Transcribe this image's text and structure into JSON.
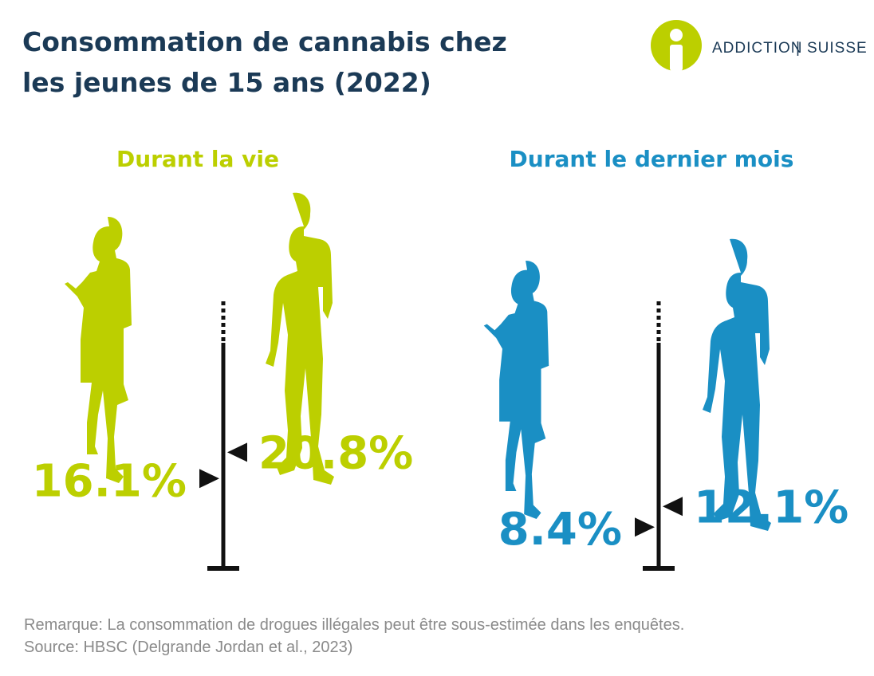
{
  "header": {
    "title_lines": [
      "Consommation de cannabis chez",
      "les jeunes de 15 ans (2022)"
    ],
    "logo_left": "ADDICTION",
    "logo_sep": "|",
    "logo_right": "SUISSE"
  },
  "panels": [
    {
      "title": "Durant la vie",
      "color": "#bccf00",
      "values": [
        16.1,
        20.8
      ],
      "value_labels": [
        "16.1%",
        "20.8%"
      ]
    },
    {
      "title": "Durant le dernier mois",
      "color": "#1a8fc4",
      "values": [
        8.4,
        12.1
      ],
      "value_labels": [
        "8.4%",
        "12.1%"
      ]
    }
  ],
  "notes": [
    "Remarque: La consommation de drogues illégales peut être sous-estimée dans les enquêtes.",
    "Source: HBSC (Delgrande Jordan et al., 2023)"
  ]
}
